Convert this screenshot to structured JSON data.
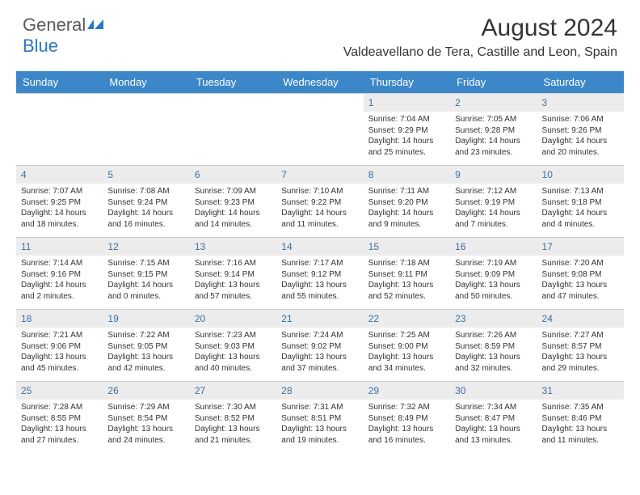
{
  "logo": {
    "text1": "General",
    "text2": "Blue"
  },
  "title": "August 2024",
  "location": "Valdeavellano de Tera, Castille and Leon, Spain",
  "colors": {
    "header_bg": "#3b87c8",
    "header_text": "#ffffff",
    "daynum_bg": "#ececec",
    "daynum_text": "#3b6fa0",
    "border": "#cfcfcf",
    "body_text": "#333333",
    "logo_gray": "#5a5a5a",
    "logo_blue": "#2b78bd"
  },
  "day_headers": [
    "Sunday",
    "Monday",
    "Tuesday",
    "Wednesday",
    "Thursday",
    "Friday",
    "Saturday"
  ],
  "weeks": [
    [
      {
        "n": "",
        "sr": "",
        "ss": "",
        "dl": ""
      },
      {
        "n": "",
        "sr": "",
        "ss": "",
        "dl": ""
      },
      {
        "n": "",
        "sr": "",
        "ss": "",
        "dl": ""
      },
      {
        "n": "",
        "sr": "",
        "ss": "",
        "dl": ""
      },
      {
        "n": "1",
        "sr": "Sunrise: 7:04 AM",
        "ss": "Sunset: 9:29 PM",
        "dl": "Daylight: 14 hours and 25 minutes."
      },
      {
        "n": "2",
        "sr": "Sunrise: 7:05 AM",
        "ss": "Sunset: 9:28 PM",
        "dl": "Daylight: 14 hours and 23 minutes."
      },
      {
        "n": "3",
        "sr": "Sunrise: 7:06 AM",
        "ss": "Sunset: 9:26 PM",
        "dl": "Daylight: 14 hours and 20 minutes."
      }
    ],
    [
      {
        "n": "4",
        "sr": "Sunrise: 7:07 AM",
        "ss": "Sunset: 9:25 PM",
        "dl": "Daylight: 14 hours and 18 minutes."
      },
      {
        "n": "5",
        "sr": "Sunrise: 7:08 AM",
        "ss": "Sunset: 9:24 PM",
        "dl": "Daylight: 14 hours and 16 minutes."
      },
      {
        "n": "6",
        "sr": "Sunrise: 7:09 AM",
        "ss": "Sunset: 9:23 PM",
        "dl": "Daylight: 14 hours and 14 minutes."
      },
      {
        "n": "7",
        "sr": "Sunrise: 7:10 AM",
        "ss": "Sunset: 9:22 PM",
        "dl": "Daylight: 14 hours and 11 minutes."
      },
      {
        "n": "8",
        "sr": "Sunrise: 7:11 AM",
        "ss": "Sunset: 9:20 PM",
        "dl": "Daylight: 14 hours and 9 minutes."
      },
      {
        "n": "9",
        "sr": "Sunrise: 7:12 AM",
        "ss": "Sunset: 9:19 PM",
        "dl": "Daylight: 14 hours and 7 minutes."
      },
      {
        "n": "10",
        "sr": "Sunrise: 7:13 AM",
        "ss": "Sunset: 9:18 PM",
        "dl": "Daylight: 14 hours and 4 minutes."
      }
    ],
    [
      {
        "n": "11",
        "sr": "Sunrise: 7:14 AM",
        "ss": "Sunset: 9:16 PM",
        "dl": "Daylight: 14 hours and 2 minutes."
      },
      {
        "n": "12",
        "sr": "Sunrise: 7:15 AM",
        "ss": "Sunset: 9:15 PM",
        "dl": "Daylight: 14 hours and 0 minutes."
      },
      {
        "n": "13",
        "sr": "Sunrise: 7:16 AM",
        "ss": "Sunset: 9:14 PM",
        "dl": "Daylight: 13 hours and 57 minutes."
      },
      {
        "n": "14",
        "sr": "Sunrise: 7:17 AM",
        "ss": "Sunset: 9:12 PM",
        "dl": "Daylight: 13 hours and 55 minutes."
      },
      {
        "n": "15",
        "sr": "Sunrise: 7:18 AM",
        "ss": "Sunset: 9:11 PM",
        "dl": "Daylight: 13 hours and 52 minutes."
      },
      {
        "n": "16",
        "sr": "Sunrise: 7:19 AM",
        "ss": "Sunset: 9:09 PM",
        "dl": "Daylight: 13 hours and 50 minutes."
      },
      {
        "n": "17",
        "sr": "Sunrise: 7:20 AM",
        "ss": "Sunset: 9:08 PM",
        "dl": "Daylight: 13 hours and 47 minutes."
      }
    ],
    [
      {
        "n": "18",
        "sr": "Sunrise: 7:21 AM",
        "ss": "Sunset: 9:06 PM",
        "dl": "Daylight: 13 hours and 45 minutes."
      },
      {
        "n": "19",
        "sr": "Sunrise: 7:22 AM",
        "ss": "Sunset: 9:05 PM",
        "dl": "Daylight: 13 hours and 42 minutes."
      },
      {
        "n": "20",
        "sr": "Sunrise: 7:23 AM",
        "ss": "Sunset: 9:03 PM",
        "dl": "Daylight: 13 hours and 40 minutes."
      },
      {
        "n": "21",
        "sr": "Sunrise: 7:24 AM",
        "ss": "Sunset: 9:02 PM",
        "dl": "Daylight: 13 hours and 37 minutes."
      },
      {
        "n": "22",
        "sr": "Sunrise: 7:25 AM",
        "ss": "Sunset: 9:00 PM",
        "dl": "Daylight: 13 hours and 34 minutes."
      },
      {
        "n": "23",
        "sr": "Sunrise: 7:26 AM",
        "ss": "Sunset: 8:59 PM",
        "dl": "Daylight: 13 hours and 32 minutes."
      },
      {
        "n": "24",
        "sr": "Sunrise: 7:27 AM",
        "ss": "Sunset: 8:57 PM",
        "dl": "Daylight: 13 hours and 29 minutes."
      }
    ],
    [
      {
        "n": "25",
        "sr": "Sunrise: 7:28 AM",
        "ss": "Sunset: 8:55 PM",
        "dl": "Daylight: 13 hours and 27 minutes."
      },
      {
        "n": "26",
        "sr": "Sunrise: 7:29 AM",
        "ss": "Sunset: 8:54 PM",
        "dl": "Daylight: 13 hours and 24 minutes."
      },
      {
        "n": "27",
        "sr": "Sunrise: 7:30 AM",
        "ss": "Sunset: 8:52 PM",
        "dl": "Daylight: 13 hours and 21 minutes."
      },
      {
        "n": "28",
        "sr": "Sunrise: 7:31 AM",
        "ss": "Sunset: 8:51 PM",
        "dl": "Daylight: 13 hours and 19 minutes."
      },
      {
        "n": "29",
        "sr": "Sunrise: 7:32 AM",
        "ss": "Sunset: 8:49 PM",
        "dl": "Daylight: 13 hours and 16 minutes."
      },
      {
        "n": "30",
        "sr": "Sunrise: 7:34 AM",
        "ss": "Sunset: 8:47 PM",
        "dl": "Daylight: 13 hours and 13 minutes."
      },
      {
        "n": "31",
        "sr": "Sunrise: 7:35 AM",
        "ss": "Sunset: 8:46 PM",
        "dl": "Daylight: 13 hours and 11 minutes."
      }
    ]
  ]
}
